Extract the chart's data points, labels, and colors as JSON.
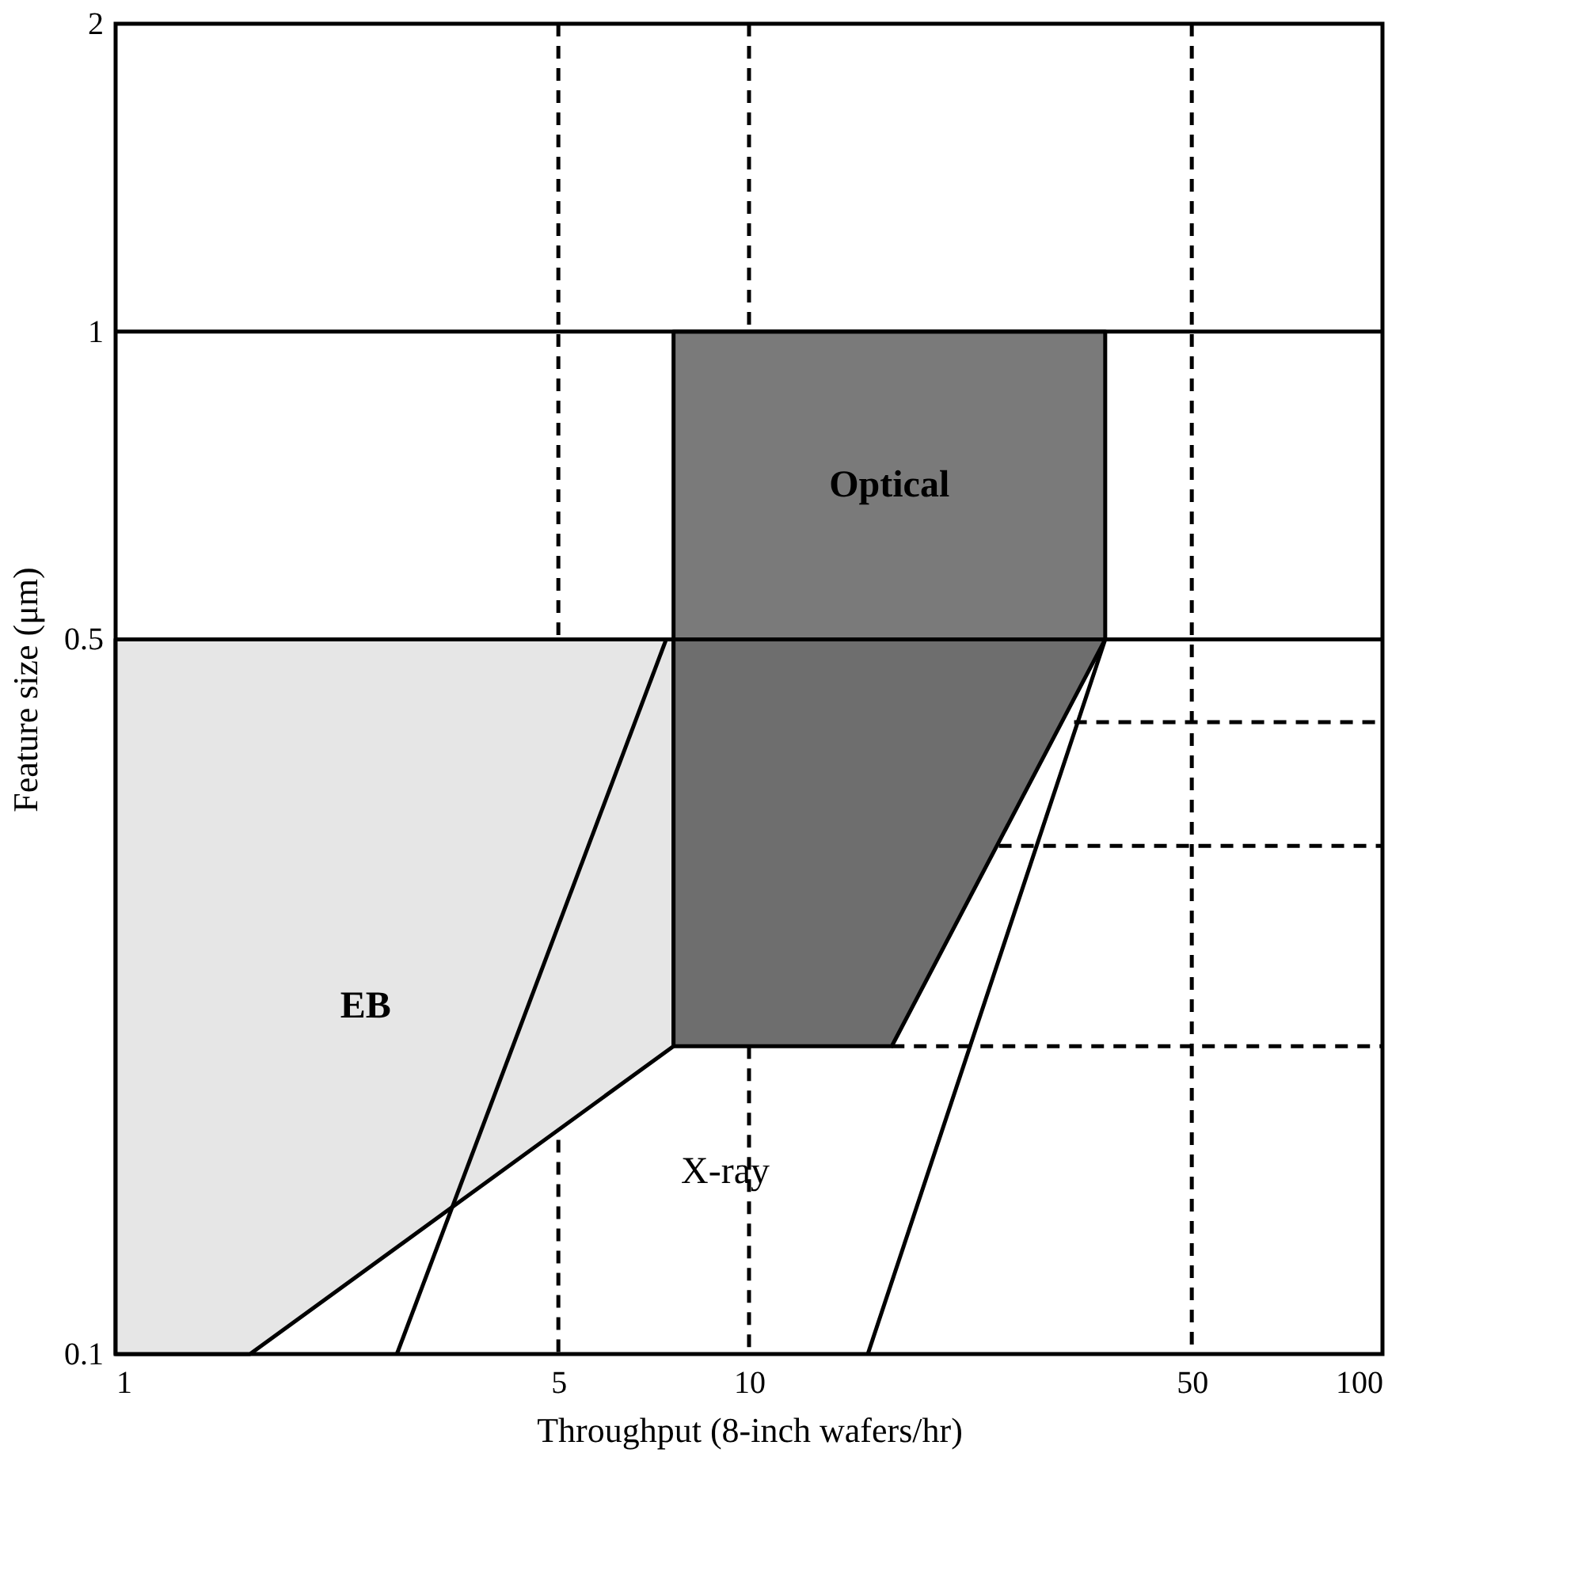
{
  "chart_data": {
    "type": "area",
    "xlabel": "Throughput (8-inch wafers/hr)",
    "ylabel": "Feature size (μm)",
    "log": "xy",
    "xlim": [
      1,
      100
    ],
    "xticks": [
      1,
      5,
      10,
      50,
      100
    ],
    "ylim": [
      0.1,
      2
    ],
    "yticks": [
      0.1,
      0.5,
      1,
      2
    ],
    "grid": false,
    "series": [
      {
        "name": "EB",
        "color": "#e6e6e6",
        "x": [
          1,
          7.6,
          7.6,
          1.63,
          1
        ],
        "values": [
          0.5,
          0.5,
          0.2,
          0.1,
          0.1
        ]
      },
      {
        "name": "Optical",
        "color": "#7a7a7a",
        "x": [
          7.6,
          36.5,
          36.5,
          7.6
        ],
        "values": [
          1,
          1,
          0.5,
          0.5
        ]
      },
      {
        "color": "#6e6e6e",
        "x": [
          7.6,
          36.5,
          16.8,
          7.6
        ],
        "values": [
          0.5,
          0.5,
          0.2,
          0.2
        ]
      },
      {
        "type": "line",
        "color": "#000000",
        "line_style": "solid",
        "x": [
          7.4,
          2.78
        ],
        "values": [
          0.5,
          0.1
        ]
      },
      {
        "type": "line",
        "color": "#000000",
        "line_style": "solid",
        "x": [
          36.5,
          15.4
        ],
        "values": [
          0.5,
          0.1
        ]
      },
      {
        "type": "line",
        "color": "#000000",
        "line_style": "dashed",
        "x": [
          5,
          5
        ],
        "values": [
          2,
          0.5
        ]
      },
      {
        "type": "line",
        "color": "#000000",
        "line_style": "dashed",
        "x": [
          5,
          5
        ],
        "values": [
          0.162,
          0.1
        ]
      },
      {
        "type": "line",
        "color": "#000000",
        "line_style": "dashed",
        "x": [
          10,
          10
        ],
        "values": [
          2,
          1
        ]
      },
      {
        "type": "line",
        "color": "#000000",
        "line_style": "dashed",
        "x": [
          10,
          10
        ],
        "values": [
          0.2,
          0.1
        ]
      },
      {
        "type": "line",
        "color": "#000000",
        "line_style": "dashed",
        "x": [
          50,
          50
        ],
        "values": [
          2,
          0.1
        ]
      },
      {
        "type": "line",
        "color": "#000000",
        "line_style": "dashed",
        "x": [
          32.6,
          100
        ],
        "values": [
          0.415,
          0.415
        ]
      },
      {
        "type": "line",
        "color": "#000000",
        "line_style": "dashed",
        "x": [
          24.8,
          100
        ],
        "values": [
          0.314,
          0.314
        ]
      },
      {
        "type": "line",
        "color": "#000000",
        "line_style": "dashed",
        "x": [
          16.8,
          100
        ],
        "values": [
          0.2,
          0.2
        ]
      }
    ],
    "ref_lines": [
      {
        "axis": "y",
        "value": 1,
        "color": "#000000",
        "line_style": "solid"
      },
      {
        "axis": "y",
        "value": 0.5,
        "color": "#000000",
        "line_style": "solid"
      }
    ],
    "annotations": [
      "X-ray"
    ]
  }
}
